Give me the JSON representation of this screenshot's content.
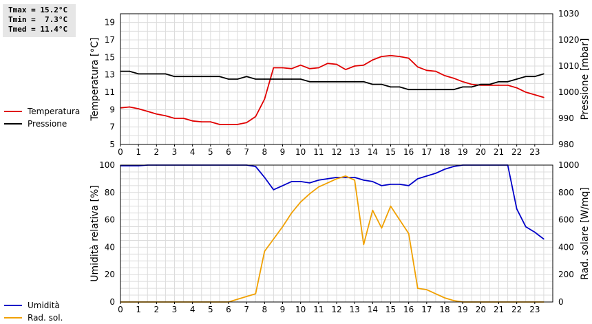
{
  "stats": {
    "tmax": "Tmax = 15.2°C",
    "tmin": "Tmin =  7.3°C",
    "tmed": "Tmed = 11.4°C"
  },
  "legend_top": [
    {
      "label": "Temperatura",
      "color": "#e00000"
    },
    {
      "label": "Pressione",
      "color": "#000000"
    }
  ],
  "legend_bottom": [
    {
      "label": "Umidità",
      "color": "#0000c8"
    },
    {
      "label": "Rad. sol.",
      "color": "#f0a000"
    }
  ],
  "chart_data": [
    {
      "type": "line",
      "ylabel": "Temperatura [°C]",
      "y2label": "Pressione [mbar]",
      "xlim": [
        0,
        24
      ],
      "ylim": [
        5,
        20
      ],
      "y2lim": [
        980,
        1030
      ],
      "grid": true,
      "xticks": [
        "0",
        "1",
        "2",
        "3",
        "4",
        "5",
        "6",
        "7",
        "8",
        "9",
        "10",
        "11",
        "12",
        "13",
        "14",
        "15",
        "16",
        "17",
        "18",
        "19",
        "20",
        "21",
        "22",
        "23"
      ],
      "yticks": [
        "5",
        "7",
        "9",
        "11",
        "13",
        "15",
        "17",
        "19"
      ],
      "y2ticks": [
        "980",
        "990",
        "1000",
        "1010",
        "1020",
        "1030"
      ],
      "series": [
        {
          "name": "Temperatura",
          "axis": "left",
          "color": "#e00000",
          "x": [
            0,
            0.5,
            1,
            1.5,
            2,
            2.5,
            3,
            3.5,
            4,
            4.5,
            5,
            5.5,
            6,
            6.5,
            7,
            7.5,
            8,
            8.5,
            9,
            9.5,
            10,
            10.5,
            11,
            11.5,
            12,
            12.5,
            13,
            13.5,
            14,
            14.5,
            15,
            15.5,
            16,
            16.5,
            17,
            17.5,
            18,
            18.5,
            19,
            19.5,
            20,
            20.5,
            21,
            21.5,
            22,
            22.5,
            23,
            23.5
          ],
          "y": [
            9.2,
            9.3,
            9.1,
            8.8,
            8.5,
            8.3,
            8.0,
            8.0,
            7.7,
            7.6,
            7.6,
            7.3,
            7.3,
            7.3,
            7.5,
            8.2,
            10.2,
            13.8,
            13.8,
            13.7,
            14.1,
            13.7,
            13.8,
            14.3,
            14.2,
            13.6,
            14.0,
            14.1,
            14.7,
            15.1,
            15.2,
            15.1,
            14.9,
            13.9,
            13.5,
            13.4,
            12.9,
            12.6,
            12.2,
            11.9,
            11.8,
            11.8,
            11.8,
            11.8,
            11.5,
            11.0,
            10.7,
            10.4
          ]
        },
        {
          "name": "Pressione",
          "axis": "right",
          "color": "#000000",
          "x": [
            0,
            0.5,
            1,
            1.5,
            2,
            2.5,
            3,
            3.5,
            4,
            4.5,
            5,
            5.5,
            6,
            6.5,
            7,
            7.5,
            8,
            8.5,
            9,
            9.5,
            10,
            10.5,
            11,
            11.5,
            12,
            12.5,
            13,
            13.5,
            14,
            14.5,
            15,
            15.5,
            16,
            16.5,
            17,
            17.5,
            18,
            18.5,
            19,
            19.5,
            20,
            20.5,
            21,
            21.5,
            22,
            22.5,
            23,
            23.5
          ],
          "y": [
            1008,
            1008,
            1007,
            1007,
            1007,
            1007,
            1006,
            1006,
            1006,
            1006,
            1006,
            1006,
            1005,
            1005,
            1006,
            1005,
            1005,
            1005,
            1005,
            1005,
            1005,
            1004,
            1004,
            1004,
            1004,
            1004,
            1004,
            1004,
            1003,
            1003,
            1002,
            1002,
            1001,
            1001,
            1001,
            1001,
            1001,
            1001,
            1002,
            1002,
            1003,
            1003,
            1004,
            1004,
            1005,
            1006,
            1006,
            1007
          ]
        }
      ]
    },
    {
      "type": "line",
      "ylabel": "Umidità relativa [%]",
      "y2label": "Rad. solare [W/mq]",
      "xlim": [
        0,
        24
      ],
      "ylim": [
        0,
        100
      ],
      "y2lim": [
        0,
        1000
      ],
      "grid": true,
      "xticks": [
        "0",
        "1",
        "2",
        "3",
        "4",
        "5",
        "6",
        "7",
        "8",
        "9",
        "10",
        "11",
        "12",
        "13",
        "14",
        "15",
        "16",
        "17",
        "18",
        "19",
        "20",
        "21",
        "22",
        "23"
      ],
      "yticks": [
        "0",
        "20",
        "40",
        "60",
        "80",
        "100"
      ],
      "y2ticks": [
        "0",
        "200",
        "400",
        "600",
        "800",
        "1000"
      ],
      "series": [
        {
          "name": "Umidità",
          "axis": "left",
          "color": "#0000c8",
          "x": [
            0,
            1,
            1.5,
            2,
            7,
            7.5,
            8,
            8.5,
            9,
            9.5,
            10,
            10.5,
            11,
            11.5,
            12,
            12.5,
            13,
            13.5,
            14,
            14.5,
            15,
            15.5,
            16,
            16.5,
            17,
            17.5,
            18,
            18.5,
            19,
            21.5,
            22,
            22.5,
            23,
            23.5
          ],
          "y": [
            99.5,
            99.5,
            100,
            100,
            100,
            99,
            91,
            82,
            85,
            88,
            88,
            87,
            89,
            90,
            91,
            91,
            91,
            89,
            88,
            85,
            86,
            86,
            85,
            90,
            92,
            94,
            97,
            99,
            100,
            100,
            68,
            55,
            51,
            46
          ]
        },
        {
          "name": "Rad. sol.",
          "axis": "right",
          "color": "#f0a000",
          "x": [
            0,
            6,
            6.5,
            7,
            7.5,
            8,
            8.5,
            9,
            9.5,
            10,
            10.5,
            11,
            11.5,
            12,
            12.5,
            13,
            13.5,
            14,
            14.5,
            15,
            15.5,
            16,
            16.5,
            17,
            17.5,
            18,
            18.5,
            19,
            19.5,
            23.5
          ],
          "y": [
            0,
            0,
            20,
            40,
            60,
            370,
            460,
            550,
            650,
            730,
            790,
            840,
            870,
            900,
            920,
            890,
            420,
            670,
            540,
            700,
            600,
            500,
            100,
            90,
            60,
            30,
            10,
            0,
            0,
            0
          ]
        }
      ]
    }
  ]
}
